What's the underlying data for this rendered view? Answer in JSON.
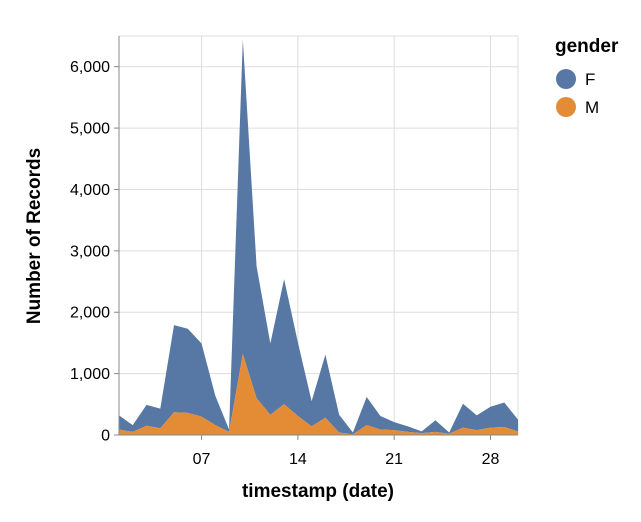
{
  "chart_data": {
    "type": "area",
    "stacked": true,
    "xlabel": "timestamp (date)",
    "ylabel": "Number of Records",
    "x": [
      1,
      2,
      3,
      4,
      5,
      6,
      7,
      8,
      9,
      10,
      11,
      12,
      13,
      14,
      15,
      16,
      17,
      18,
      19,
      20,
      21,
      22,
      23,
      24,
      25,
      26,
      27,
      28,
      29,
      30
    ],
    "x_ticks": [
      {
        "day": 7,
        "label": "07"
      },
      {
        "day": 14,
        "label": "14"
      },
      {
        "day": 21,
        "label": "21"
      },
      {
        "day": 28,
        "label": "28"
      }
    ],
    "y_ticks": [
      {
        "value": 0,
        "label": "0"
      },
      {
        "value": 1000,
        "label": "1,000"
      },
      {
        "value": 2000,
        "label": "2,000"
      },
      {
        "value": 3000,
        "label": "3,000"
      },
      {
        "value": 4000,
        "label": "4,000"
      },
      {
        "value": 5000,
        "label": "5,000"
      },
      {
        "value": 6000,
        "label": "6,000"
      }
    ],
    "ylim": [
      0,
      6500
    ],
    "grid": true,
    "legend_title": "gender",
    "legend_position": "right",
    "series": [
      {
        "name": "F",
        "color": "#5778a4",
        "values": [
          230,
          110,
          340,
          320,
          1420,
          1370,
          1190,
          480,
          40,
          5120,
          2150,
          1160,
          2040,
          1200,
          410,
          1030,
          290,
          30,
          460,
          220,
          130,
          90,
          30,
          190,
          20,
          390,
          240,
          340,
          400,
          190
        ]
      },
      {
        "name": "M",
        "color": "#e48c35",
        "values": [
          90,
          50,
          150,
          110,
          370,
          360,
          300,
          160,
          50,
          1320,
          600,
          330,
          500,
          310,
          140,
          280,
          40,
          10,
          160,
          90,
          80,
          50,
          30,
          50,
          20,
          120,
          80,
          120,
          130,
          60
        ]
      }
    ]
  }
}
